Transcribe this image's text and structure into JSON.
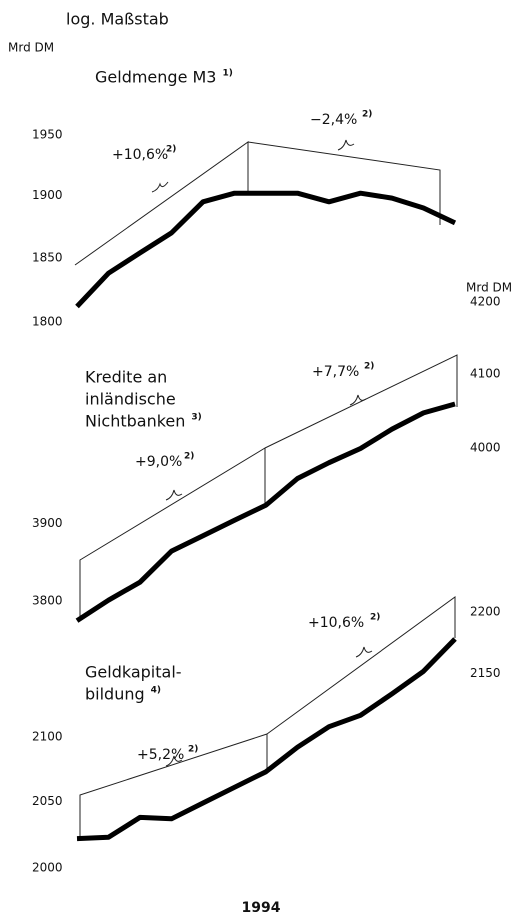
{
  "scale_note": "log. Maßstab",
  "chart_data": [
    {
      "type": "line",
      "log_scale": true,
      "ylabel": "Mrd DM",
      "title": [
        "Geldmenge M3"
      ],
      "title_note": "1)",
      "xlabel": "1994",
      "categories": [
        null,
        null,
        null,
        null,
        null,
        null,
        null,
        null,
        null,
        null,
        null,
        null,
        null
      ],
      "series": [
        {
          "name": "Geldmenge M3",
          "color": "#000000",
          "values": [
            1812,
            1838,
            1854,
            1870,
            1895,
            1902,
            1902,
            1902,
            1895,
            1902,
            1898,
            1890,
            1878
          ]
        }
      ],
      "ylim": [
        1800,
        1950
      ],
      "yticks": [
        1800,
        1850,
        1900,
        1950
      ],
      "annotations": [
        {
          "text": "+10,6%",
          "note": "2)"
        },
        {
          "text": "−2,4%",
          "note": "2)"
        }
      ]
    },
    {
      "type": "line",
      "log_scale": true,
      "y2label": "Mrd DM",
      "title": [
        "Kredite an",
        "inländische",
        "Nichtbanken"
      ],
      "title_note": "3)",
      "categories": [
        null,
        null,
        null,
        null,
        null,
        null,
        null,
        null,
        null,
        null,
        null,
        null,
        null
      ],
      "series": [
        {
          "name": "Kredite an inländische Nichtbanken",
          "color": "#000000",
          "values": [
            3775,
            3801,
            3824,
            3864,
            3884,
            3904,
            3924,
            3959,
            3980,
            3999,
            4025,
            4047,
            4059
          ]
        }
      ],
      "ylim": [
        3800,
        4200
      ],
      "yticks": [
        3800,
        3900
      ],
      "y2lim": [
        3800,
        4200
      ],
      "y2ticks": [
        4000,
        4100,
        4200
      ],
      "annotations": [
        {
          "text": "+9,0%",
          "note": "2)"
        },
        {
          "text": "+7,7%",
          "note": "2)"
        }
      ]
    },
    {
      "type": "line",
      "log_scale": true,
      "title": [
        "Geldkapital-",
        "bildung"
      ],
      "title_note": "4)",
      "categories": [
        null,
        null,
        null,
        null,
        null,
        null,
        null,
        null,
        null,
        null,
        null,
        null,
        null
      ],
      "series": [
        {
          "name": "Geldkapitalbildung",
          "color": "#000000",
          "values": [
            2022,
            2023,
            2038,
            2037,
            2049,
            2061,
            2073,
            2092,
            2108,
            2117,
            2134,
            2152,
            2178
          ]
        }
      ],
      "ylim": [
        2000,
        2200
      ],
      "yticks": [
        2000,
        2050,
        2100
      ],
      "y2lim": [
        2000,
        2200
      ],
      "y2ticks": [
        2150,
        2200
      ],
      "annotations": [
        {
          "text": "+5,2%",
          "note": "2)"
        },
        {
          "text": "+10,6%",
          "note": "2)"
        }
      ]
    }
  ]
}
